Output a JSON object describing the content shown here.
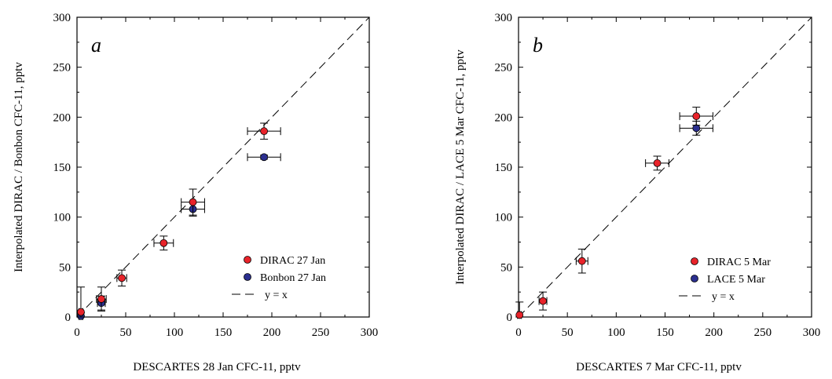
{
  "chart_data": [
    {
      "type": "scatter",
      "panel_label": "a",
      "xlabel": "DESCARTES 28 Jan CFC-11, pptv",
      "ylabel": "Interpolated DIRAC / Bonbon CFC-11, pptv",
      "xlim": [
        0,
        300
      ],
      "ylim": [
        0,
        300
      ],
      "xticks": [
        0,
        50,
        100,
        150,
        200,
        250,
        300
      ],
      "yticks": [
        0,
        50,
        100,
        150,
        200,
        250,
        300
      ],
      "grid": false,
      "legend_position": "bottom-right",
      "series": [
        {
          "name": "Bonbon 27 Jan",
          "color": "#2b2f8f",
          "points": [
            {
              "x": 4,
              "y": 1,
              "xerr": 2,
              "yerr": 3
            },
            {
              "x": 25,
              "y": 14,
              "xerr": 4,
              "yerr": 7
            },
            {
              "x": 119,
              "y": 108,
              "xerr": 12,
              "yerr": 7
            },
            {
              "x": 192,
              "y": 160,
              "xerr": 17,
              "yerr": 2
            }
          ]
        },
        {
          "name": "DIRAC 27 Jan",
          "color": "#e8232a",
          "points": [
            {
              "x": 4,
              "y": 5,
              "xerr": 2,
              "yerr": 25
            },
            {
              "x": 25,
              "y": 18,
              "xerr": 5,
              "yerr": 12
            },
            {
              "x": 46,
              "y": 39,
              "xerr": 5,
              "yerr": 8
            },
            {
              "x": 89,
              "y": 74,
              "xerr": 10,
              "yerr": 7
            },
            {
              "x": 119,
              "y": 115,
              "xerr": 12,
              "yerr": 13
            },
            {
              "x": 192,
              "y": 186,
              "xerr": 17,
              "yerr": 8
            }
          ]
        }
      ],
      "reference_line": {
        "label": "y = x",
        "slope": 1,
        "intercept": 0,
        "style": "dashed"
      }
    },
    {
      "type": "scatter",
      "panel_label": "b",
      "xlabel": "DESCARTES 7 Mar CFC-11, pptv",
      "ylabel": "Interpolated DIRAC / LACE 5 Mar CFC-11, pptv",
      "xlim": [
        0,
        300
      ],
      "ylim": [
        0,
        300
      ],
      "xticks": [
        0,
        50,
        100,
        150,
        200,
        250,
        300
      ],
      "yticks": [
        0,
        50,
        100,
        150,
        200,
        250,
        300
      ],
      "grid": false,
      "legend_position": "bottom-right",
      "series": [
        {
          "name": "LACE 5 Mar",
          "color": "#2b2f8f",
          "points": [
            {
              "x": 182,
              "y": 189,
              "xerr": 17,
              "yerr": 7
            }
          ]
        },
        {
          "name": "DIRAC 5 Mar",
          "color": "#e8232a",
          "points": [
            {
              "x": 1,
              "y": 2,
              "xerr": 2,
              "yerr": 13
            },
            {
              "x": 25,
              "y": 16,
              "xerr": 4,
              "yerr": 9
            },
            {
              "x": 65,
              "y": 56,
              "xerr": 6,
              "yerr": 12
            },
            {
              "x": 142,
              "y": 154,
              "xerr": 12,
              "yerr": 7
            },
            {
              "x": 182,
              "y": 201,
              "xerr": 17,
              "yerr": 9
            }
          ]
        }
      ],
      "reference_line": {
        "label": "y = x",
        "slope": 1,
        "intercept": 0,
        "style": "dashed"
      }
    }
  ]
}
